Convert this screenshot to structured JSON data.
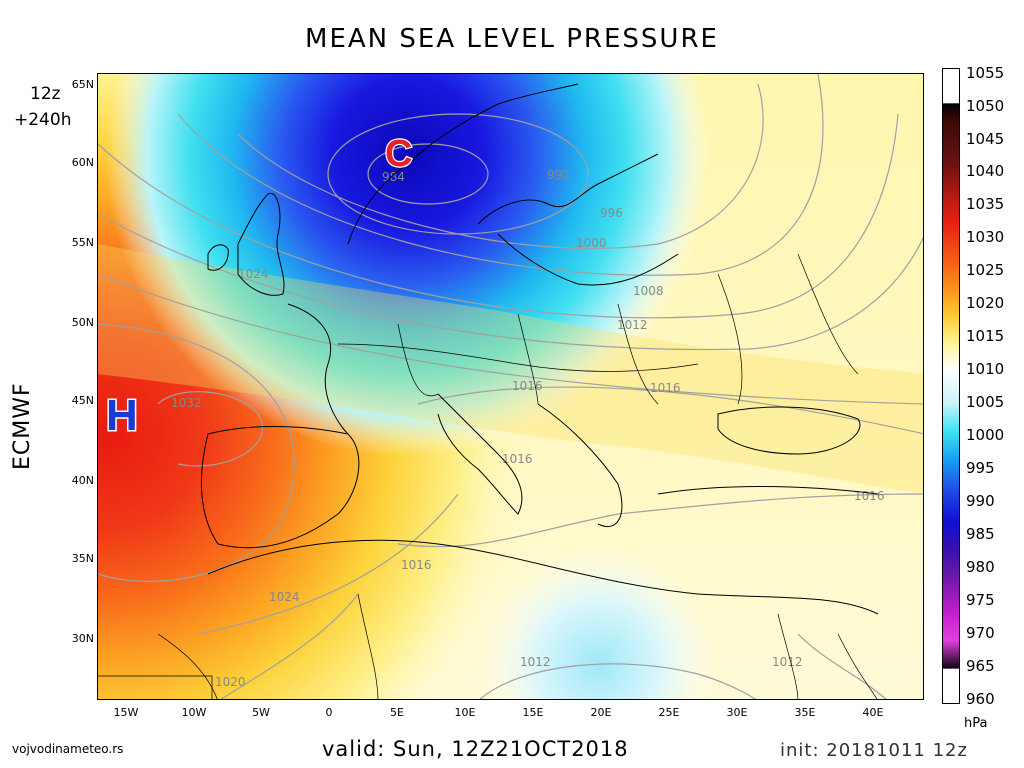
{
  "title": "MEAN SEA LEVEL PRESSURE",
  "run_hour": "12z",
  "lead_time": "+240h",
  "model": "ECMWF",
  "credit": "vojvodinameteo.rs",
  "valid": "valid: Sun, 12Z21OCT2018",
  "init": "init: 20181011  12z",
  "colorbar": {
    "unit": "hPa",
    "labels": [
      "1055",
      "1050",
      "1045",
      "1040",
      "1035",
      "1030",
      "1025",
      "1020",
      "1015",
      "1010",
      "1005",
      "1000",
      "995",
      "990",
      "985",
      "980",
      "975",
      "970",
      "965",
      "960"
    ]
  },
  "axes": {
    "latitudes": [
      "65N",
      "60N",
      "55N",
      "50N",
      "45N",
      "40N",
      "35N",
      "30N"
    ],
    "longitudes": [
      "15W",
      "10W",
      "5W",
      "0",
      "5E",
      "10E",
      "15E",
      "20E",
      "25E",
      "30E",
      "35E",
      "40E"
    ]
  },
  "pressure_centers": {
    "low": {
      "symbol": "C"
    },
    "high": {
      "symbol": "H"
    }
  },
  "isobar_labels": [
    "984",
    "992",
    "996",
    "1000",
    "1008",
    "1012",
    "1016",
    "1016",
    "1016",
    "1016",
    "1016",
    "1024",
    "1024",
    "1032",
    "1020",
    "1012",
    "1012"
  ],
  "colors": {
    "low_center": "#e8202a",
    "high_center": "#1a3ad8",
    "low_fill": "#1010c8",
    "high_fill": "#e83010",
    "isobar": "#a0a0a0",
    "coastline": "#000000"
  }
}
